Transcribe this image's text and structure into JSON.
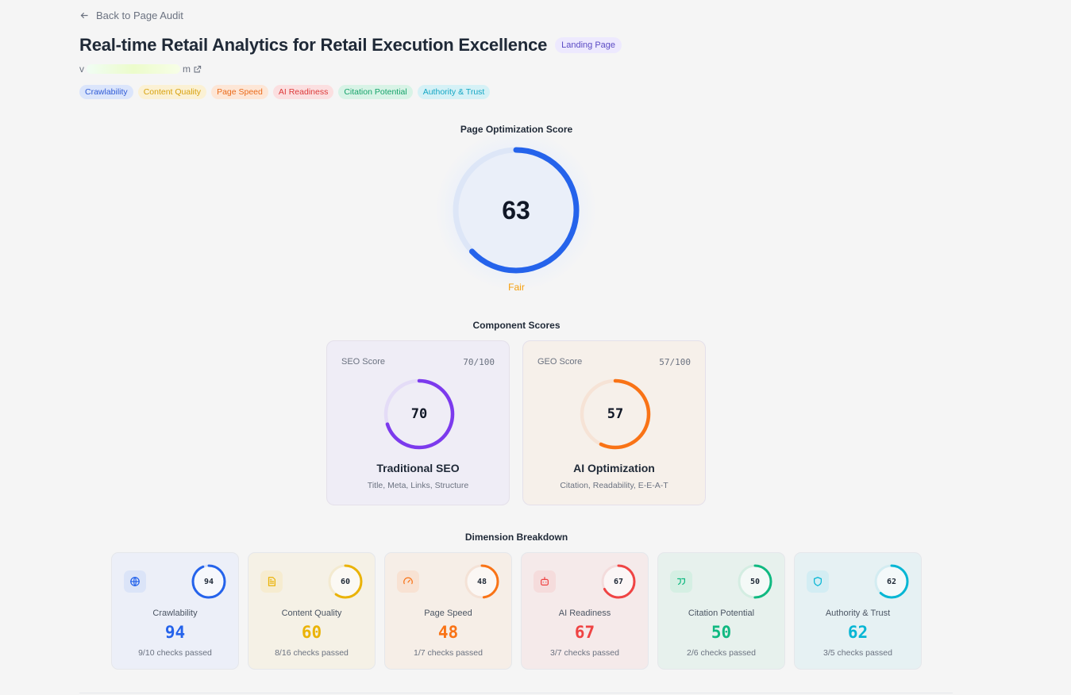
{
  "back_link": "Back to Page Audit",
  "title": "Real-time Retail Analytics for Retail Execution Excellence",
  "page_type_badge": "Landing Page",
  "url_prefix": "v",
  "url_suffix": "m",
  "tags": [
    {
      "label": "Crawlability",
      "bg": "#dbe5fb",
      "color": "#2f5bd6"
    },
    {
      "label": "Content Quality",
      "bg": "#fbf1d4",
      "color": "#d8a20e"
    },
    {
      "label": "Page Speed",
      "bg": "#fde6d6",
      "color": "#ea6c1c"
    },
    {
      "label": "AI Readiness",
      "bg": "#fbdfe0",
      "color": "#dc3a3a"
    },
    {
      "label": "Citation Potential",
      "bg": "#d8f3e6",
      "color": "#16a36a"
    },
    {
      "label": "Authority & Trust",
      "bg": "#d5f1f6",
      "color": "#14a6c4"
    }
  ],
  "optimization": {
    "heading": "Page Optimization Score",
    "score": 63,
    "fraction": 0.63,
    "rating": "Fair",
    "color": "#2563eb"
  },
  "components": {
    "heading": "Component Scores",
    "cards": [
      {
        "label": "SEO Score",
        "fraction_text": "70/100",
        "score": 70,
        "fraction": 0.7,
        "name": "Traditional SEO",
        "desc": "Title, Meta, Links, Structure",
        "color": "#7c3aed",
        "track": "#e4dcf7",
        "bg": "#efedf6"
      },
      {
        "label": "GEO Score",
        "fraction_text": "57/100",
        "score": 57,
        "fraction": 0.57,
        "name": "AI Optimization",
        "desc": "Citation, Readability, E-E-A-T",
        "color": "#f97316",
        "track": "#f6e3d6",
        "bg": "#f6f0ea"
      }
    ]
  },
  "dimensions": {
    "heading": "Dimension Breakdown",
    "cards": [
      {
        "name": "Crawlability",
        "score": 94,
        "fraction": 0.94,
        "checks": "9/10 checks passed",
        "color": "#2563eb",
        "track": "#d6e0f7",
        "bg": "#eceff8",
        "icon": "globe-icon",
        "icon_bg": "#dbe4f8"
      },
      {
        "name": "Content Quality",
        "score": 60,
        "fraction": 0.6,
        "checks": "8/16 checks passed",
        "color": "#eab308",
        "track": "#f3ead0",
        "bg": "#f5f1e6",
        "icon": "document-icon",
        "icon_bg": "#f6ecd0"
      },
      {
        "name": "Page Speed",
        "score": 48,
        "fraction": 0.48,
        "checks": "1/7 checks passed",
        "color": "#f97316",
        "track": "#f4e2d6",
        "bg": "#f6eee7",
        "icon": "gauge-icon",
        "icon_bg": "#f8e2d3"
      },
      {
        "name": "AI Readiness",
        "score": 67,
        "fraction": 0.67,
        "checks": "3/7 checks passed",
        "color": "#ef4444",
        "track": "#f3dcdc",
        "bg": "#f5eaea",
        "icon": "robot-icon",
        "icon_bg": "#f5dcdc"
      },
      {
        "name": "Citation Potential",
        "score": 50,
        "fraction": 0.5,
        "checks": "2/6 checks passed",
        "color": "#10b981",
        "track": "#d4ede2",
        "bg": "#e7f1ed",
        "icon": "quote-icon",
        "icon_bg": "#d5efe3"
      },
      {
        "name": "Authority & Trust",
        "score": 62,
        "fraction": 0.62,
        "checks": "3/5 checks passed",
        "color": "#06b6d4",
        "track": "#d3ecf1",
        "bg": "#e6f1f3",
        "icon": "shield-icon",
        "icon_bg": "#d3edf3"
      }
    ]
  }
}
